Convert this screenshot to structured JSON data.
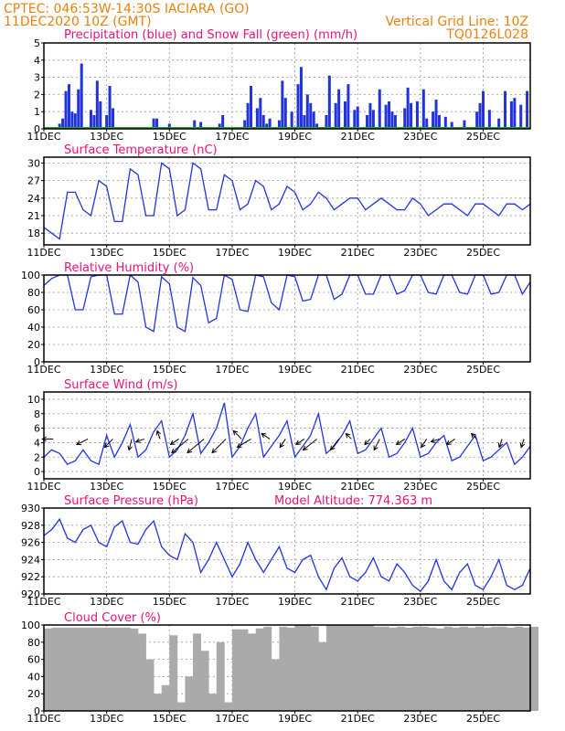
{
  "header": {
    "line1": "CPTEC:  046:53W-14:30S  IACIARA (GO)",
    "line2": "11DEC2020 10Z (GMT)",
    "grid_note": "Vertical Grid Line: 10Z",
    "code": "TQ0126L028"
  },
  "colors": {
    "series_blue": "#2233dd",
    "snow_green": "#22aa22",
    "cloud_gray": "#aaaaaa",
    "title_magenta": "#e8107a",
    "header_orange": "#e8820c"
  },
  "x_ticks": [
    "11DEC",
    "13DEC",
    "15DEC",
    "17DEC",
    "19DEC",
    "21DEC",
    "23DEC",
    "25DEC"
  ],
  "chart_data": [
    {
      "id": "precip",
      "type": "bar",
      "title": "Precipitation (blue) and Snow Fall (green) (mm/h)",
      "ylim": [
        0,
        5
      ],
      "yticks": [
        0,
        1,
        2,
        3,
        4,
        5
      ],
      "xlim": [
        0,
        15.5
      ],
      "x_ticks_days": [
        0,
        2,
        4,
        6,
        8,
        10,
        12,
        14
      ],
      "x": [
        0.5,
        0.6,
        0.7,
        0.8,
        0.9,
        1.0,
        1.1,
        1.2,
        1.5,
        1.6,
        1.7,
        1.8,
        2.0,
        2.1,
        2.2,
        3.5,
        3.6,
        4.0,
        4.8,
        5.0,
        5.6,
        5.7,
        6.4,
        6.5,
        6.6,
        6.8,
        6.9,
        7.0,
        7.1,
        7.2,
        7.5,
        7.6,
        7.7,
        7.9,
        8.1,
        8.2,
        8.3,
        8.4,
        8.5,
        8.6,
        8.7,
        9.0,
        9.1,
        9.3,
        9.4,
        9.6,
        9.7,
        9.9,
        10.0,
        10.3,
        10.4,
        10.5,
        10.7,
        10.9,
        11.0,
        11.1,
        11.2,
        11.5,
        11.6,
        11.7,
        11.9,
        12.1,
        12.2,
        12.4,
        12.5,
        12.6,
        12.8,
        13.0,
        13.4,
        13.8,
        13.9,
        14.0,
        14.2,
        14.5,
        14.7,
        14.9,
        15.0,
        15.2,
        15.4
      ],
      "values": [
        0.3,
        0.6,
        2.2,
        2.6,
        1.0,
        0.9,
        2.3,
        3.8,
        1.1,
        0.8,
        2.8,
        1.6,
        0.8,
        2.5,
        1.2,
        0.6,
        0.6,
        0.3,
        0.5,
        0.4,
        0.3,
        0.8,
        0.5,
        1.5,
        2.5,
        1.2,
        1.8,
        0.8,
        0.3,
        0.6,
        0.5,
        2.8,
        1.8,
        1.0,
        2.6,
        3.6,
        0.8,
        2.0,
        1.5,
        1.0,
        0.3,
        0.8,
        3.1,
        1.5,
        2.3,
        1.6,
        2.6,
        1.1,
        1.3,
        0.8,
        1.5,
        1.1,
        2.3,
        1.4,
        1.6,
        1.0,
        0.8,
        1.2,
        2.4,
        1.5,
        1.6,
        2.3,
        0.6,
        1.0,
        1.7,
        0.8,
        0.7,
        0.4,
        0.5,
        1.0,
        1.5,
        2.2,
        1.1,
        0.6,
        2.2,
        1.6,
        1.8,
        1.4,
        2.2
      ],
      "snow_values": 0
    },
    {
      "id": "temp",
      "type": "line",
      "title": "Surface Temperature (nC)",
      "ylim": [
        16,
        31
      ],
      "yticks": [
        18,
        21,
        24,
        27,
        30
      ],
      "x": [
        0,
        0.25,
        0.5,
        0.75,
        1,
        1.25,
        1.5,
        1.75,
        2,
        2.25,
        2.5,
        2.75,
        3,
        3.25,
        3.5,
        3.75,
        4,
        4.25,
        4.5,
        4.75,
        5,
        5.25,
        5.5,
        5.75,
        6,
        6.25,
        6.5,
        6.75,
        7,
        7.25,
        7.5,
        7.75,
        8,
        8.25,
        8.5,
        8.75,
        9,
        9.25,
        9.5,
        9.75,
        10,
        10.25,
        10.5,
        10.75,
        11,
        11.25,
        11.5,
        11.75,
        12,
        12.25,
        12.5,
        12.75,
        13,
        13.25,
        13.5,
        13.75,
        14,
        14.25,
        14.5,
        14.75,
        15,
        15.25,
        15.5
      ],
      "values": [
        19,
        18,
        17,
        25,
        25,
        22,
        21,
        27,
        26,
        20,
        20,
        29,
        28,
        21,
        21,
        30,
        29,
        21,
        22,
        30,
        29,
        22,
        22,
        28,
        27,
        22,
        23,
        27,
        26,
        22,
        23,
        26,
        25,
        22,
        23,
        25,
        24,
        22,
        23,
        24,
        24,
        22,
        23,
        24,
        23,
        22,
        22,
        24,
        23,
        21,
        22,
        23,
        23,
        22,
        21,
        23,
        23,
        22,
        21,
        23,
        23,
        22,
        23
      ]
    },
    {
      "id": "rh",
      "type": "line",
      "title": "Relative Humidity (%)",
      "ylim": [
        0,
        100
      ],
      "yticks": [
        0,
        20,
        40,
        60,
        80,
        100
      ],
      "x": [
        0,
        0.25,
        0.5,
        0.75,
        1,
        1.25,
        1.5,
        1.75,
        2,
        2.25,
        2.5,
        2.75,
        3,
        3.25,
        3.5,
        3.75,
        4,
        4.25,
        4.5,
        4.75,
        5,
        5.25,
        5.5,
        5.75,
        6,
        6.25,
        6.5,
        6.75,
        7,
        7.25,
        7.5,
        7.75,
        8,
        8.25,
        8.5,
        8.75,
        9,
        9.25,
        9.5,
        9.75,
        10,
        10.25,
        10.5,
        10.75,
        11,
        11.25,
        11.5,
        11.75,
        12,
        12.25,
        12.5,
        12.75,
        13,
        13.25,
        13.5,
        13.75,
        14,
        14.25,
        14.5,
        14.75,
        15,
        15.25,
        15.5
      ],
      "values": [
        88,
        96,
        100,
        100,
        60,
        60,
        98,
        100,
        100,
        55,
        55,
        100,
        92,
        40,
        35,
        98,
        90,
        40,
        35,
        97,
        88,
        45,
        50,
        100,
        95,
        60,
        58,
        100,
        98,
        68,
        60,
        100,
        98,
        70,
        72,
        100,
        100,
        72,
        78,
        100,
        100,
        78,
        78,
        100,
        100,
        78,
        82,
        100,
        100,
        80,
        78,
        100,
        100,
        80,
        78,
        100,
        100,
        78,
        80,
        100,
        100,
        78,
        92
      ]
    },
    {
      "id": "wind",
      "type": "line",
      "title": "Surface Wind (m/s)",
      "ylim": [
        -1,
        11
      ],
      "yticks": [
        0,
        2,
        4,
        6,
        8,
        10
      ],
      "x": [
        0,
        0.25,
        0.5,
        0.75,
        1,
        1.25,
        1.5,
        1.75,
        2,
        2.25,
        2.5,
        2.75,
        3,
        3.25,
        3.5,
        3.75,
        4,
        4.25,
        4.5,
        4.75,
        5,
        5.25,
        5.5,
        5.75,
        6,
        6.25,
        6.5,
        6.75,
        7,
        7.25,
        7.5,
        7.75,
        8,
        8.25,
        8.5,
        8.75,
        9,
        9.25,
        9.5,
        9.75,
        10,
        10.25,
        10.5,
        10.75,
        11,
        11.25,
        11.5,
        11.75,
        12,
        12.25,
        12.5,
        12.75,
        13,
        13.25,
        13.5,
        13.75,
        14,
        14.25,
        14.5,
        14.75,
        15,
        15.25,
        15.5
      ],
      "values": [
        2,
        3,
        2.5,
        1,
        1.5,
        3,
        1.5,
        1,
        5,
        2,
        4,
        6.5,
        2,
        3,
        5.5,
        7,
        2,
        3,
        5,
        8,
        2.5,
        4,
        6,
        9.5,
        2,
        3.5,
        6,
        8,
        2,
        3.5,
        5,
        7,
        2,
        3.5,
        5,
        8,
        2.5,
        3.5,
        5,
        7,
        2.5,
        3,
        4.5,
        6,
        2,
        2.5,
        4,
        6,
        2,
        2.5,
        4,
        5,
        1.5,
        2,
        3.5,
        5,
        1.5,
        2,
        3,
        4,
        1,
        2,
        3.5
      ],
      "arrows": [
        {
          "x": 0.3,
          "u": -4,
          "v": 0
        },
        {
          "x": 1.4,
          "u": -4,
          "v": -2
        },
        {
          "x": 2.2,
          "u": -3,
          "v": -3
        },
        {
          "x": 2.8,
          "u": -1,
          "v": -4
        },
        {
          "x": 3.2,
          "u": -3,
          "v": -1
        },
        {
          "x": 3.7,
          "u": -1,
          "v": 3
        },
        {
          "x": 4.3,
          "u": -3,
          "v": -2
        },
        {
          "x": 4.6,
          "u": -6,
          "v": -5
        },
        {
          "x": 5.1,
          "u": -6,
          "v": -5
        },
        {
          "x": 5.8,
          "u": -5,
          "v": -5
        },
        {
          "x": 6.3,
          "u": -3,
          "v": 3
        },
        {
          "x": 6.6,
          "u": -5,
          "v": -3
        },
        {
          "x": 7.2,
          "u": -3,
          "v": 2
        },
        {
          "x": 7.7,
          "u": -2,
          "v": -3
        },
        {
          "x": 8.3,
          "u": -3,
          "v": -2
        },
        {
          "x": 8.7,
          "u": -5,
          "v": -4
        },
        {
          "x": 9.4,
          "u": -3,
          "v": -4
        },
        {
          "x": 9.8,
          "u": -2,
          "v": 2
        },
        {
          "x": 10.4,
          "u": -2,
          "v": -2
        },
        {
          "x": 10.7,
          "u": -2,
          "v": -4
        },
        {
          "x": 11.5,
          "u": -3,
          "v": -2
        },
        {
          "x": 12.2,
          "u": -2,
          "v": -3
        },
        {
          "x": 12.6,
          "u": -3,
          "v": -1
        },
        {
          "x": 13.1,
          "u": -3,
          "v": -2
        },
        {
          "x": 13.8,
          "u": -2,
          "v": 2
        },
        {
          "x": 14.6,
          "u": -1,
          "v": -3
        },
        {
          "x": 15.3,
          "u": -1,
          "v": -3
        }
      ]
    },
    {
      "id": "press",
      "type": "line",
      "title": "Surface Pressure (hPa)",
      "annotation": "Model Altitude: 774.363 m",
      "ylim": [
        920,
        930
      ],
      "yticks": [
        920,
        922,
        924,
        926,
        928,
        930
      ],
      "x": [
        0,
        0.25,
        0.5,
        0.75,
        1,
        1.25,
        1.5,
        1.75,
        2,
        2.25,
        2.5,
        2.75,
        3,
        3.25,
        3.5,
        3.75,
        4,
        4.25,
        4.5,
        4.75,
        5,
        5.25,
        5.5,
        5.75,
        6,
        6.25,
        6.5,
        6.75,
        7,
        7.25,
        7.5,
        7.75,
        8,
        8.25,
        8.5,
        8.75,
        9,
        9.25,
        9.5,
        9.75,
        10,
        10.25,
        10.5,
        10.75,
        11,
        11.25,
        11.5,
        11.75,
        12,
        12.25,
        12.5,
        12.75,
        13,
        13.25,
        13.5,
        13.75,
        14,
        14.25,
        14.5,
        14.75,
        15,
        15.25,
        15.5
      ],
      "values": [
        926.8,
        927.5,
        928.7,
        926.5,
        926,
        927.5,
        928,
        926,
        925.5,
        927.8,
        928.5,
        926,
        925.8,
        927.5,
        928.5,
        925.5,
        924.5,
        924,
        927,
        926,
        922.5,
        924,
        926,
        924,
        922,
        923.5,
        926,
        924,
        922.5,
        924,
        925.5,
        923,
        922.5,
        924,
        924.5,
        922,
        920.5,
        923,
        924.2,
        922,
        921.5,
        922.5,
        924.2,
        922,
        921.5,
        923.5,
        922.5,
        921,
        920.3,
        921.5,
        924,
        921.5,
        920.5,
        922.5,
        923.5,
        921,
        920.5,
        922,
        924,
        921,
        920.5,
        921,
        923
      ]
    },
    {
      "id": "cloud",
      "type": "area",
      "title": "Cloud Cover (%)",
      "ylim": [
        0,
        100
      ],
      "yticks": [
        0,
        20,
        40,
        60,
        80,
        100
      ],
      "x": [
        0,
        0.25,
        0.5,
        0.75,
        1,
        1.25,
        1.5,
        1.75,
        2,
        2.25,
        2.5,
        2.75,
        3,
        3.25,
        3.5,
        3.75,
        4,
        4.25,
        4.5,
        4.75,
        5,
        5.25,
        5.5,
        5.75,
        6,
        6.25,
        6.5,
        6.75,
        7,
        7.25,
        7.5,
        7.75,
        8,
        8.25,
        8.5,
        8.75,
        9,
        9.25,
        9.5,
        9.75,
        10,
        10.25,
        10.5,
        10.75,
        11,
        11.25,
        11.5,
        11.75,
        12,
        12.25,
        12.5,
        12.75,
        13,
        13.25,
        13.5,
        13.75,
        14,
        14.25,
        14.5,
        14.75,
        15,
        15.25,
        15.5
      ],
      "values": [
        96,
        97,
        97,
        97,
        97,
        97,
        97,
        97,
        97,
        97,
        97,
        96,
        90,
        60,
        20,
        30,
        88,
        10,
        40,
        90,
        70,
        20,
        80,
        10,
        95,
        95,
        90,
        96,
        98,
        60,
        98,
        97,
        100,
        100,
        98,
        80,
        100,
        100,
        100,
        100,
        100,
        100,
        98,
        98,
        97,
        98,
        97,
        98,
        98,
        97,
        96,
        98,
        97,
        98,
        97,
        98,
        97,
        98,
        98,
        97,
        98,
        97,
        98
      ]
    }
  ]
}
